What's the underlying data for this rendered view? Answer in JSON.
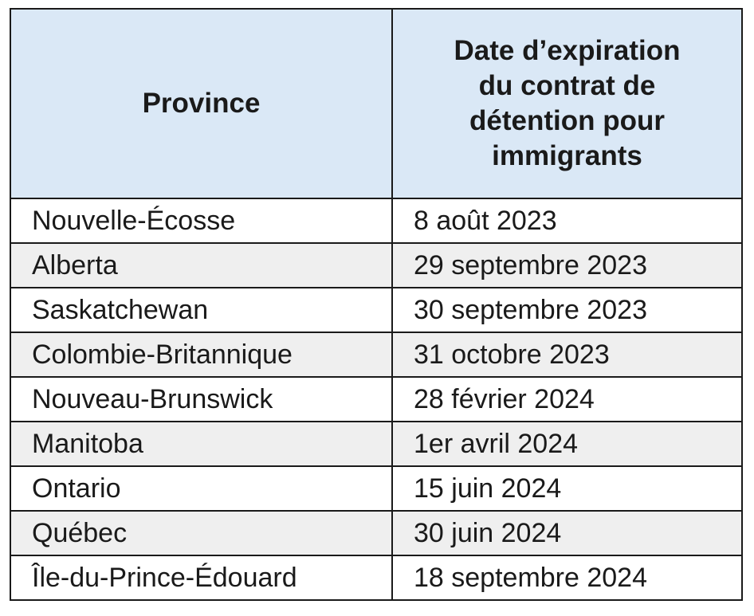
{
  "table": {
    "headers": [
      "Province",
      "Date d’expiration du contrat de détention pour immigrants"
    ],
    "header_lines": [
      "Date d’expiration",
      "du contrat de",
      "détention pour",
      "immigrants"
    ],
    "rows": [
      {
        "province": "Nouvelle-Écosse",
        "date": "8 août 2023"
      },
      {
        "province": "Alberta",
        "date": "29 septembre 2023"
      },
      {
        "province": "Saskatchewan",
        "date": "30 septembre 2023"
      },
      {
        "province": "Colombie-Britannique",
        "date": "31 octobre 2023"
      },
      {
        "province": "Nouveau-Brunswick",
        "date": "28 février 2024"
      },
      {
        "province": "Manitoba",
        "date": "1er avril 2024"
      },
      {
        "province": "Ontario",
        "date": "15 juin 2024"
      },
      {
        "province": "Québec",
        "date": "30 juin 2024"
      },
      {
        "province": "Île-du-Prince-Édouard",
        "date": "18 septembre 2024"
      }
    ]
  },
  "colors": {
    "header_bg": "#dae8f6",
    "alt_row_bg": "#efefef",
    "border": "#1a1a1a"
  }
}
